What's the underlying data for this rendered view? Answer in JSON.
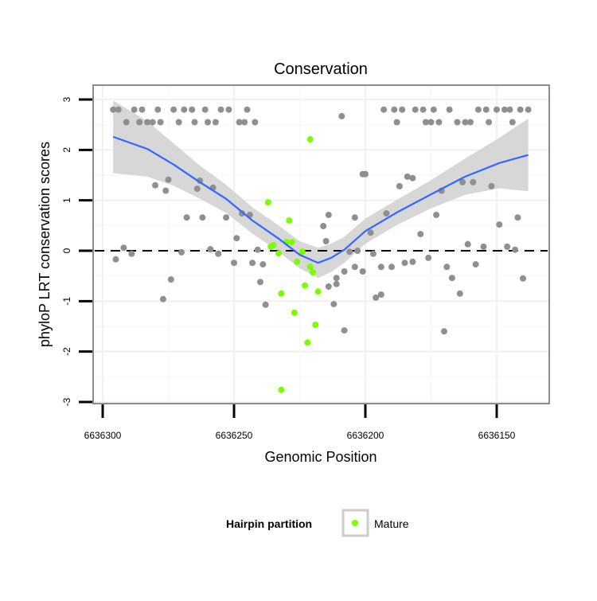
{
  "chart_data": {
    "type": "scatter",
    "title": "Conservation",
    "xlabel": "Genomic Position",
    "ylabel": "phyloP LRT conservation scores",
    "xlim": [
      6636304,
      6636133
    ],
    "ylim": [
      -3.05,
      3.3
    ],
    "x_reversed": true,
    "x_ticks": [
      6636300,
      6636250,
      6636200,
      6636150
    ],
    "x_tick_labels": [
      "6636300",
      "6636250",
      "6636200",
      "6636150"
    ],
    "y_ticks": [
      3,
      2,
      1,
      0,
      -1,
      -2,
      -3
    ],
    "y_tick_labels": [
      "3",
      "2",
      "1",
      "0",
      "-1",
      "-2",
      "-3"
    ],
    "grid": true,
    "reference_line": {
      "y": 0,
      "style": "dashed",
      "color": "#000000"
    },
    "legend": {
      "title": "Hairpin partition",
      "placement": "bottom",
      "entries": [
        {
          "label": "Mature",
          "color": "#7cfc00"
        }
      ]
    },
    "colors": {
      "other": "#8f8f8f",
      "mature": "#7cfc00",
      "smooth": "#3366ff",
      "band": "#d3d3d3",
      "panel_border": "#8c8c8c"
    },
    "series": [
      {
        "name": "Other",
        "color": "#8f8f8f",
        "points": [
          [
            6636296,
            2.8
          ],
          [
            6636294,
            2.8
          ],
          [
            6636288,
            2.8
          ],
          [
            6636285,
            2.8
          ],
          [
            6636279,
            2.8
          ],
          [
            6636273,
            2.8
          ],
          [
            6636269,
            2.8
          ],
          [
            6636266,
            2.8
          ],
          [
            6636261,
            2.8
          ],
          [
            6636255,
            2.8
          ],
          [
            6636252,
            2.8
          ],
          [
            6636245,
            2.8
          ],
          [
            6636193,
            2.8
          ],
          [
            6636189,
            2.8
          ],
          [
            6636186,
            2.8
          ],
          [
            6636181,
            2.8
          ],
          [
            6636178,
            2.8
          ],
          [
            6636174,
            2.8
          ],
          [
            6636168,
            2.8
          ],
          [
            6636157,
            2.8
          ],
          [
            6636154,
            2.8
          ],
          [
            6636150,
            2.8
          ],
          [
            6636147,
            2.8
          ],
          [
            6636145,
            2.8
          ],
          [
            6636141,
            2.8
          ],
          [
            6636138,
            2.8
          ],
          [
            6636291,
            2.55
          ],
          [
            6636286,
            2.55
          ],
          [
            6636283,
            2.55
          ],
          [
            6636281,
            2.55
          ],
          [
            6636278,
            2.55
          ],
          [
            6636271,
            2.55
          ],
          [
            6636265,
            2.55
          ],
          [
            6636260,
            2.55
          ],
          [
            6636257,
            2.55
          ],
          [
            6636248,
            2.55
          ],
          [
            6636246,
            2.55
          ],
          [
            6636242,
            2.55
          ],
          [
            6636188,
            2.55
          ],
          [
            6636177,
            2.55
          ],
          [
            6636175,
            2.55
          ],
          [
            6636172,
            2.55
          ],
          [
            6636165,
            2.55
          ],
          [
            6636162,
            2.55
          ],
          [
            6636160,
            2.55
          ],
          [
            6636153,
            2.55
          ],
          [
            6636144,
            2.55
          ],
          [
            6636209,
            2.67
          ],
          [
            6636280,
            1.3
          ],
          [
            6636275,
            1.41
          ],
          [
            6636276,
            1.19
          ],
          [
            6636263,
            1.39
          ],
          [
            6636264,
            1.23
          ],
          [
            6636258,
            1.25
          ],
          [
            6636268,
            0.66
          ],
          [
            6636262,
            0.66
          ],
          [
            6636253,
            0.66
          ],
          [
            6636247,
            0.74
          ],
          [
            6636244,
            0.71
          ],
          [
            6636249,
            0.25
          ],
          [
            6636292,
            0.06
          ],
          [
            6636289,
            -0.06
          ],
          [
            6636295,
            -0.17
          ],
          [
            6636270,
            -0.03
          ],
          [
            6636259,
            0.03
          ],
          [
            6636256,
            -0.06
          ],
          [
            6636241,
            0.02
          ],
          [
            6636250,
            -0.24
          ],
          [
            6636243,
            -0.24
          ],
          [
            6636239,
            -0.27
          ],
          [
            6636274,
            -0.57
          ],
          [
            6636277,
            -0.96
          ],
          [
            6636240,
            -0.62
          ],
          [
            6636238,
            -1.07
          ],
          [
            6636216,
            0.49
          ],
          [
            6636215,
            0.19
          ],
          [
            6636201,
            1.52
          ],
          [
            6636200,
            1.52
          ],
          [
            6636184,
            1.47
          ],
          [
            6636182,
            1.44
          ],
          [
            6636187,
            1.28
          ],
          [
            6636163,
            1.36
          ],
          [
            6636159,
            1.36
          ],
          [
            6636152,
            1.28
          ],
          [
            6636171,
            1.19
          ],
          [
            6636214,
            0.71
          ],
          [
            6636204,
            0.66
          ],
          [
            6636192,
            0.74
          ],
          [
            6636173,
            0.71
          ],
          [
            6636149,
            0.52
          ],
          [
            6636142,
            0.66
          ],
          [
            6636198,
            0.36
          ],
          [
            6636179,
            0.33
          ],
          [
            6636206,
            -0.02
          ],
          [
            6636203,
            0.0
          ],
          [
            6636197,
            -0.06
          ],
          [
            6636161,
            0.13
          ],
          [
            6636155,
            0.08
          ],
          [
            6636146,
            0.08
          ],
          [
            6636143,
            0.02
          ],
          [
            6636176,
            -0.14
          ],
          [
            6636208,
            -0.41
          ],
          [
            6636204,
            -0.32
          ],
          [
            6636201,
            -0.41
          ],
          [
            6636194,
            -0.32
          ],
          [
            6636190,
            -0.32
          ],
          [
            6636185,
            -0.24
          ],
          [
            6636182,
            -0.22
          ],
          [
            6636169,
            -0.32
          ],
          [
            6636158,
            -0.27
          ],
          [
            6636211,
            -0.54
          ],
          [
            6636211,
            -0.66
          ],
          [
            6636214,
            -0.71
          ],
          [
            6636167,
            -0.54
          ],
          [
            6636140,
            -0.55
          ],
          [
            6636212,
            -1.06
          ],
          [
            6636196,
            -0.93
          ],
          [
            6636194,
            -0.87
          ],
          [
            6636164,
            -0.85
          ],
          [
            6636208,
            -1.58
          ],
          [
            6636170,
            -1.6
          ]
        ]
      },
      {
        "name": "Mature",
        "color": "#7cfc00",
        "points": [
          [
            6636221,
            2.21
          ],
          [
            6636237,
            0.96
          ],
          [
            6636229,
            0.6
          ],
          [
            6636236,
            0.08
          ],
          [
            6636235,
            0.11
          ],
          [
            6636230,
            0.17
          ],
          [
            6636228,
            0.17
          ],
          [
            6636233,
            -0.05
          ],
          [
            6636224,
            -0.02
          ],
          [
            6636226,
            -0.22
          ],
          [
            6636221,
            -0.32
          ],
          [
            6636220,
            -0.43
          ],
          [
            6636223,
            -0.69
          ],
          [
            6636218,
            -0.81
          ],
          [
            6636232,
            -0.85
          ],
          [
            6636227,
            -1.23
          ],
          [
            6636219,
            -1.47
          ],
          [
            6636222,
            -1.82
          ],
          [
            6636232,
            -2.76
          ]
        ]
      }
    ],
    "smooth": {
      "method": "loess",
      "color": "#3366ff",
      "points": [
        [
          6636296,
          2.26,
          0.72
        ],
        [
          6636283,
          2.02,
          0.55
        ],
        [
          6636273,
          1.71,
          0.42
        ],
        [
          6636263,
          1.36,
          0.33
        ],
        [
          6636253,
          1.03,
          0.28
        ],
        [
          6636243,
          0.6,
          0.26
        ],
        [
          6636233,
          0.24,
          0.26
        ],
        [
          6636225,
          -0.08,
          0.27
        ],
        [
          6636218,
          -0.24,
          0.3
        ],
        [
          6636213,
          -0.14,
          0.28
        ],
        [
          6636208,
          0.02,
          0.26
        ],
        [
          6636200,
          0.39,
          0.25
        ],
        [
          6636188,
          0.76,
          0.25
        ],
        [
          6636175,
          1.12,
          0.28
        ],
        [
          6636162,
          1.47,
          0.36
        ],
        [
          6636149,
          1.74,
          0.5
        ],
        [
          6636138,
          1.9,
          0.72
        ]
      ]
    }
  }
}
